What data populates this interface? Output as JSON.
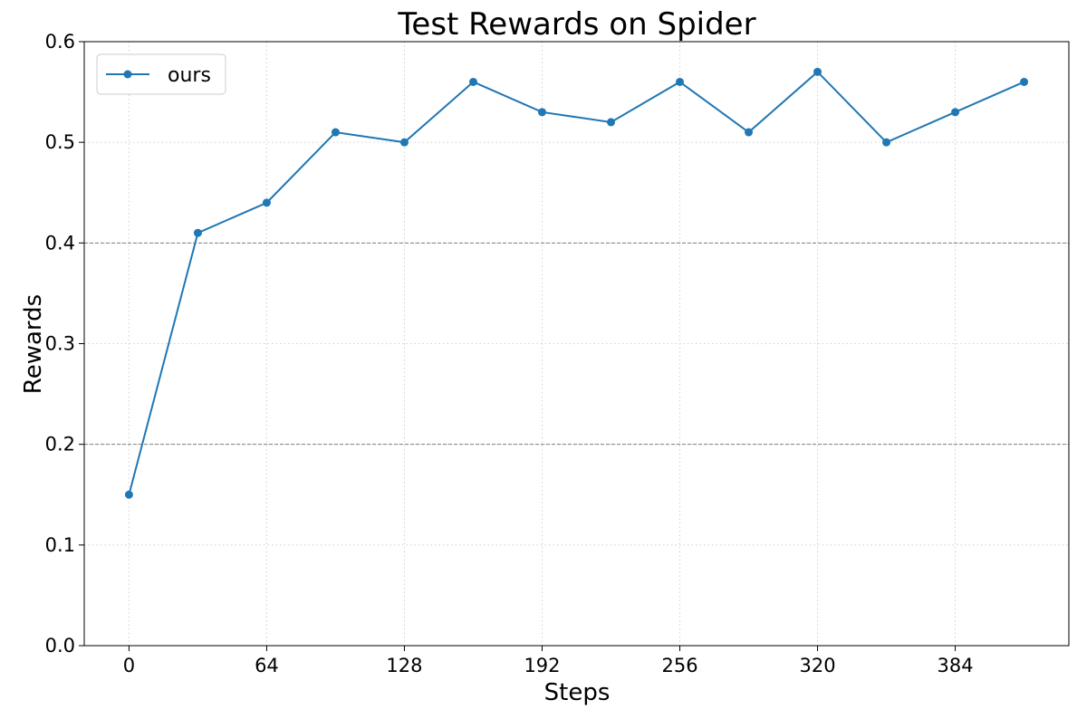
{
  "chart_data": {
    "type": "line",
    "title": "Test Rewards on Spider",
    "x_label": "Steps",
    "y_label": "Rewards",
    "x": [
      0,
      32,
      64,
      96,
      128,
      160,
      192,
      224,
      256,
      288,
      320,
      352,
      384,
      416
    ],
    "series": [
      {
        "name": "ours",
        "color": "#1f77b4",
        "values": [
          0.15,
          0.41,
          0.44,
          0.51,
          0.5,
          0.56,
          0.53,
          0.52,
          0.56,
          0.51,
          0.57,
          0.5,
          0.53,
          0.56
        ]
      }
    ],
    "xlim": [
      -20.8,
      436.8
    ],
    "xticks": [
      0,
      64,
      128,
      192,
      256,
      320,
      384
    ],
    "ylim": [
      0,
      0.6
    ],
    "yticks": [
      {
        "value": 0,
        "label": "0.0"
      },
      0.1,
      0.2,
      0.3,
      0.4,
      0.5,
      0.6
    ],
    "reference_lines": [
      0.2,
      0.4
    ],
    "grid": true,
    "legend": "upper-left"
  }
}
